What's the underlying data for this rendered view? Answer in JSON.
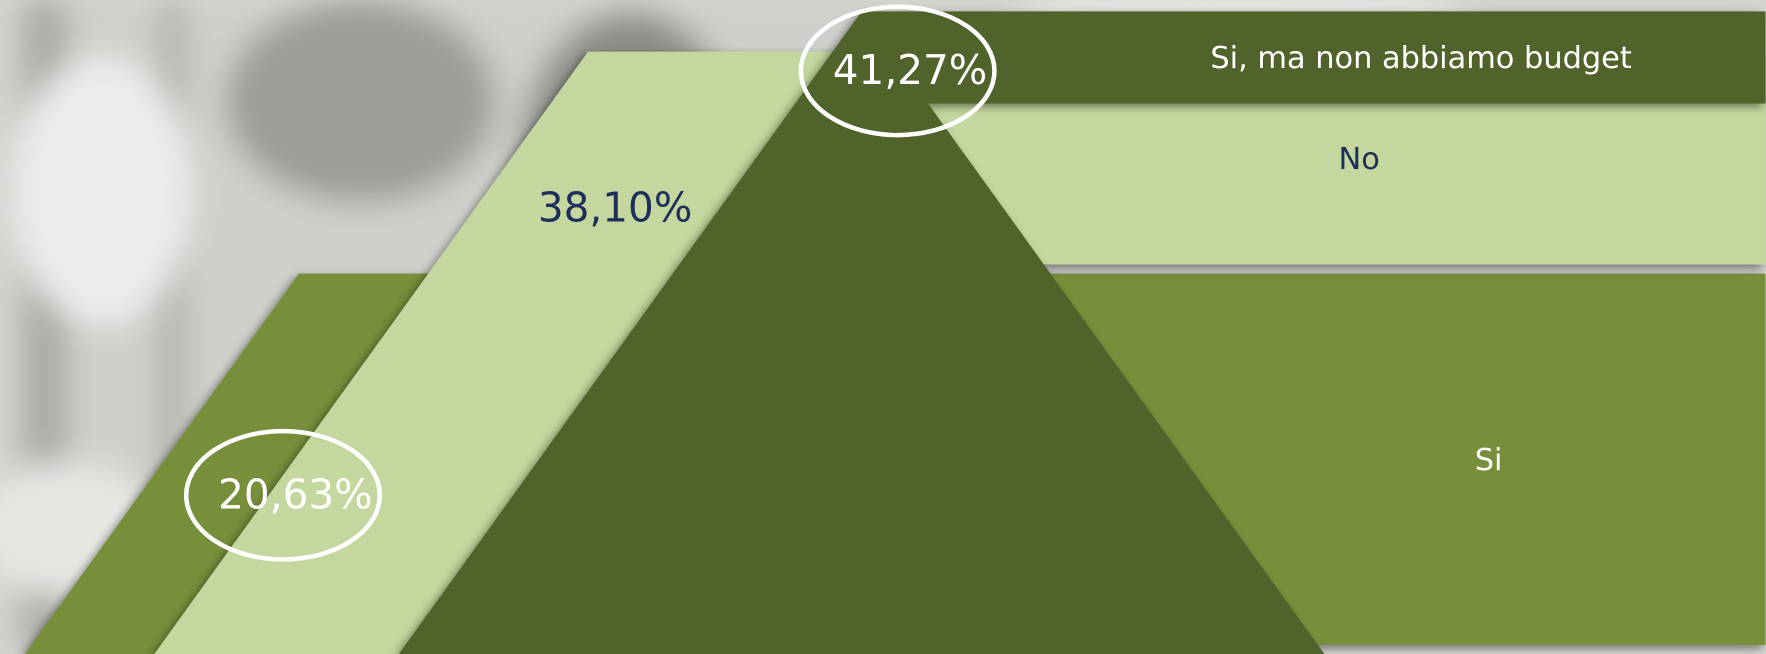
{
  "chart_data": {
    "type": "mountain",
    "categories": [
      "Si",
      "No",
      "Si, ma non abbiamo budget"
    ],
    "values": [
      20.63,
      38.1,
      41.27
    ],
    "value_labels": [
      "20,63%",
      "38,10%",
      "41,27%"
    ],
    "colors": [
      "#778f3a",
      "#c4d79e",
      "#50632a"
    ]
  }
}
